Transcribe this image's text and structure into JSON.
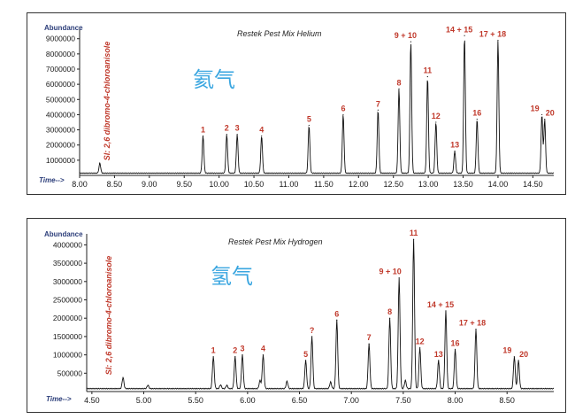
{
  "chart_data": [
    {
      "type": "line",
      "title": "Restek Pest Mix Helium",
      "ylabel": "Abundance",
      "xlabel": "Time-->",
      "watermark": "氦气",
      "internal_standard_label": "SI: 2,6 dibromo-4-chloroanisole",
      "xlim": [
        8.0,
        14.8
      ],
      "ylim": [
        0,
        9800000
      ],
      "x_ticks": [
        "8.00",
        "8.50",
        "9.00",
        "9.50",
        "10.00",
        "10.50",
        "11.00",
        "11.50",
        "12.00",
        "12.50",
        "13.00",
        "13.50",
        "14.00",
        "14.50"
      ],
      "y_ticks": [
        "1000000",
        "2000000",
        "3000000",
        "4000000",
        "5000000",
        "6000000",
        "7000000",
        "8000000",
        "9000000"
      ],
      "baseline": 150000,
      "peaks": [
        {
          "label": "",
          "x": 8.29,
          "y": 800000
        },
        {
          "label": "1",
          "x": 9.77,
          "y": 2600000
        },
        {
          "label": "2",
          "x": 10.11,
          "y": 2700000
        },
        {
          "label": "3",
          "x": 10.26,
          "y": 2700000
        },
        {
          "label": "4",
          "x": 10.61,
          "y": 2600000
        },
        {
          "label": "5",
          "x": 11.29,
          "y": 3300000
        },
        {
          "label": "6",
          "x": 11.78,
          "y": 4000000
        },
        {
          "label": "7",
          "x": 12.28,
          "y": 4300000
        },
        {
          "label": "8",
          "x": 12.58,
          "y": 5700000
        },
        {
          "label": "9 + 10",
          "x": 12.75,
          "y": 8800000
        },
        {
          "label": "11",
          "x": 12.99,
          "y": 6500000
        },
        {
          "label": "12",
          "x": 13.11,
          "y": 3500000
        },
        {
          "label": "13",
          "x": 13.38,
          "y": 1600000
        },
        {
          "label": "14 + 15",
          "x": 13.52,
          "y": 9200000
        },
        {
          "label": "16",
          "x": 13.7,
          "y": 3700000
        },
        {
          "label": "17 + 18",
          "x": 14.0,
          "y": 8900000
        },
        {
          "label": "19",
          "x": 14.63,
          "y": 4000000
        },
        {
          "label": "20",
          "x": 14.67,
          "y": 3700000
        }
      ]
    },
    {
      "type": "line",
      "title": "Restek Pest Mix Hydrogen",
      "ylabel": "Abundance",
      "xlabel": "Time-->",
      "watermark": "氢气",
      "internal_standard_label": "SI: 2,6 dibromo-4-chloroanisole",
      "xlim": [
        4.45,
        8.95
      ],
      "ylim": [
        0,
        4300000
      ],
      "x_ticks": [
        "4.50",
        "5.00",
        "5.50",
        "6.00",
        "6.50",
        "7.00",
        "7.50",
        "8.00",
        "8.50"
      ],
      "y_ticks": [
        "500000",
        "1000000",
        "1500000",
        "2000000",
        "2500000",
        "3000000",
        "3500000",
        "4000000"
      ],
      "baseline": 80000,
      "peaks": [
        {
          "label": "",
          "x": 4.8,
          "y": 380000
        },
        {
          "label": "",
          "x": 5.04,
          "y": 170000
        },
        {
          "label": "1",
          "x": 5.67,
          "y": 950000
        },
        {
          "label": "",
          "x": 5.74,
          "y": 180000
        },
        {
          "label": "",
          "x": 5.8,
          "y": 170000
        },
        {
          "label": "2",
          "x": 5.88,
          "y": 950000
        },
        {
          "label": "3",
          "x": 5.95,
          "y": 1000000
        },
        {
          "label": "",
          "x": 6.12,
          "y": 300000
        },
        {
          "label": "4",
          "x": 6.15,
          "y": 1000000
        },
        {
          "label": "",
          "x": 6.38,
          "y": 280000
        },
        {
          "label": "5",
          "x": 6.56,
          "y": 850000
        },
        {
          "label": "?",
          "x": 6.62,
          "y": 1500000
        },
        {
          "label": "",
          "x": 6.8,
          "y": 260000
        },
        {
          "label": "6",
          "x": 6.86,
          "y": 1950000
        },
        {
          "label": "7",
          "x": 7.17,
          "y": 1300000
        },
        {
          "label": "8",
          "x": 7.37,
          "y": 2000000
        },
        {
          "label": "9 + 10",
          "x": 7.46,
          "y": 3100000
        },
        {
          "label": "",
          "x": 7.52,
          "y": 300000
        },
        {
          "label": "11",
          "x": 7.6,
          "y": 4150000
        },
        {
          "label": "12",
          "x": 7.66,
          "y": 1200000
        },
        {
          "label": "13",
          "x": 7.84,
          "y": 850000
        },
        {
          "label": "14 + 15",
          "x": 7.91,
          "y": 2200000
        },
        {
          "label": "16",
          "x": 8.0,
          "y": 1150000
        },
        {
          "label": "17 + 18",
          "x": 8.2,
          "y": 1700000
        },
        {
          "label": "19",
          "x": 8.57,
          "y": 950000
        },
        {
          "label": "20",
          "x": 8.61,
          "y": 850000
        }
      ]
    }
  ]
}
